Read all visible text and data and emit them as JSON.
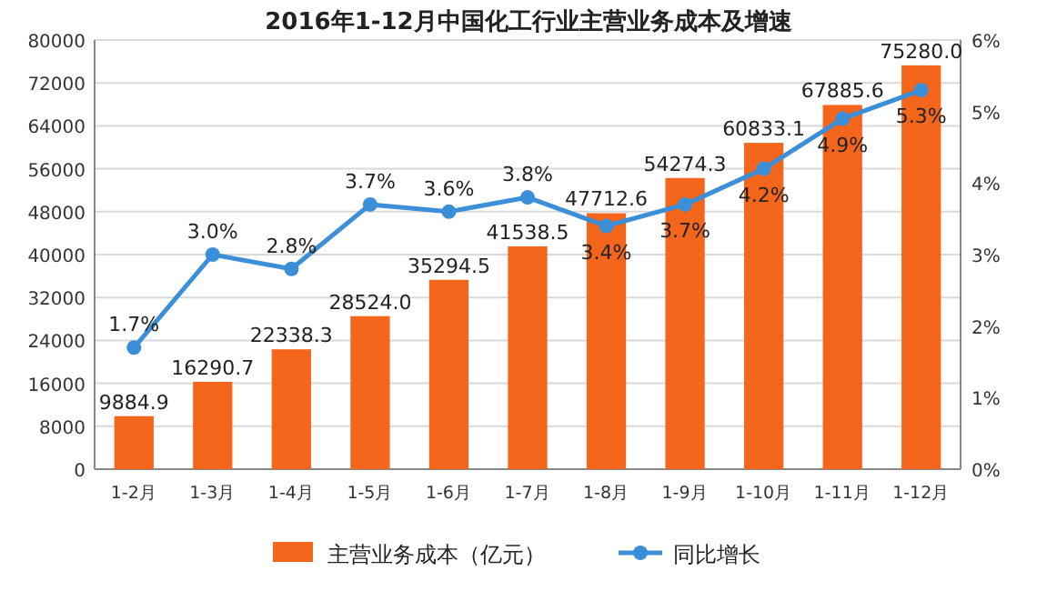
{
  "chart_data": {
    "type": "bar",
    "title": "2016年1-12月中国化工行业主营业务成本及增速",
    "categories": [
      "1-2月",
      "1-3月",
      "1-4月",
      "1-5月",
      "1-6月",
      "1-7月",
      "1-8月",
      "1-9月",
      "1-10月",
      "1-11月",
      "1-12月"
    ],
    "series": [
      {
        "name": "主营业务成本（亿元）",
        "color": "#f4661b",
        "values": [
          9884.9,
          16290.7,
          22338.3,
          28524.0,
          35294.5,
          41538.5,
          47712.6,
          54274.3,
          60833.1,
          67885.6,
          75280.0
        ],
        "value_labels": [
          "9884.9",
          "16290.7",
          "22338.3",
          "28524.0",
          "35294.5",
          "41538.5",
          "47712.6",
          "54274.3",
          "60833.1",
          "67885.6",
          "75280.0"
        ]
      },
      {
        "name": "同比增长",
        "type": "line",
        "axis": "y2",
        "color": "#3b8ed8",
        "marker": "circle",
        "values": [
          1.7,
          3.0,
          2.8,
          3.7,
          3.6,
          3.8,
          3.4,
          3.7,
          4.2,
          4.9,
          5.3
        ],
        "value_labels": [
          "1.7%",
          "3.0%",
          "2.8%",
          "3.7%",
          "3.6%",
          "3.8%",
          "3.4%",
          "3.7%",
          "4.2%",
          "4.9%",
          "5.3%"
        ]
      }
    ],
    "ylim": [
      0,
      80000
    ],
    "yticks": [
      0,
      8000,
      16000,
      24000,
      32000,
      40000,
      48000,
      56000,
      64000,
      72000,
      80000
    ],
    "y2lim": [
      0,
      6
    ],
    "y2ticks": [
      {
        "value": 0,
        "label": "0%"
      },
      {
        "value": 1,
        "label": "1%"
      },
      {
        "value": 2,
        "label": "2%"
      },
      {
        "value": 3,
        "label": "3%"
      },
      {
        "value": 4,
        "label": "4%"
      },
      {
        "value": 5,
        "label": "5%"
      },
      {
        "value": 6,
        "label": "6%"
      }
    ],
    "grid": "y",
    "legend": "bottom"
  }
}
